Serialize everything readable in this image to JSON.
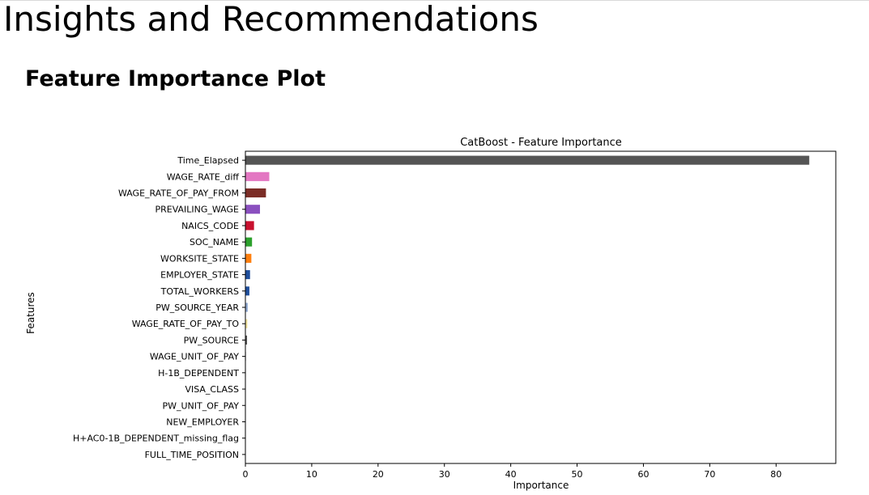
{
  "slide": {
    "title": "Insights and Recommendations",
    "subtitle": "Feature Importance Plot"
  },
  "chart_data": {
    "type": "bar",
    "orientation": "horizontal",
    "title": "CatBoost - Feature Importance",
    "xlabel": "Importance",
    "ylabel": "Features",
    "xlim": [
      0,
      89
    ],
    "xticks": [
      0,
      10,
      20,
      30,
      40,
      50,
      60,
      70,
      80
    ],
    "grid": false,
    "categories": [
      "Time_Elapsed",
      "WAGE_RATE_diff",
      "WAGE_RATE_OF_PAY_FROM",
      "PREVAILING_WAGE",
      "NAICS_CODE",
      "SOC_NAME",
      "WORKSITE_STATE",
      "EMPLOYER_STATE",
      "TOTAL_WORKERS",
      "PW_SOURCE_YEAR",
      "WAGE_RATE_OF_PAY_TO",
      "PW_SOURCE",
      "WAGE_UNIT_OF_PAY",
      "H-1B_DEPENDENT",
      "VISA_CLASS",
      "PW_UNIT_OF_PAY",
      "NEW_EMPLOYER",
      "H+AC0-1B_DEPENDENT_missing_flag",
      "FULL_TIME_POSITION"
    ],
    "values": [
      85.0,
      3.6,
      3.1,
      2.2,
      1.3,
      1.0,
      0.9,
      0.7,
      0.6,
      0.35,
      0.3,
      0.25,
      0.1,
      0.08,
      0.05,
      0.04,
      0.03,
      0.02,
      0.02
    ],
    "colors": [
      "#555555",
      "#e377c2",
      "#7b2d26",
      "#8a4fbf",
      "#c8102e",
      "#2ca02c",
      "#ff7f0e",
      "#1f4e9c",
      "#1f4e9c",
      "#8fa8d0",
      "#f2e39a",
      "#555555",
      "#c7c7c7",
      "#dddddd",
      "#dddddd",
      "#dddddd",
      "#dddddd",
      "#dddddd",
      "#dddddd"
    ]
  }
}
